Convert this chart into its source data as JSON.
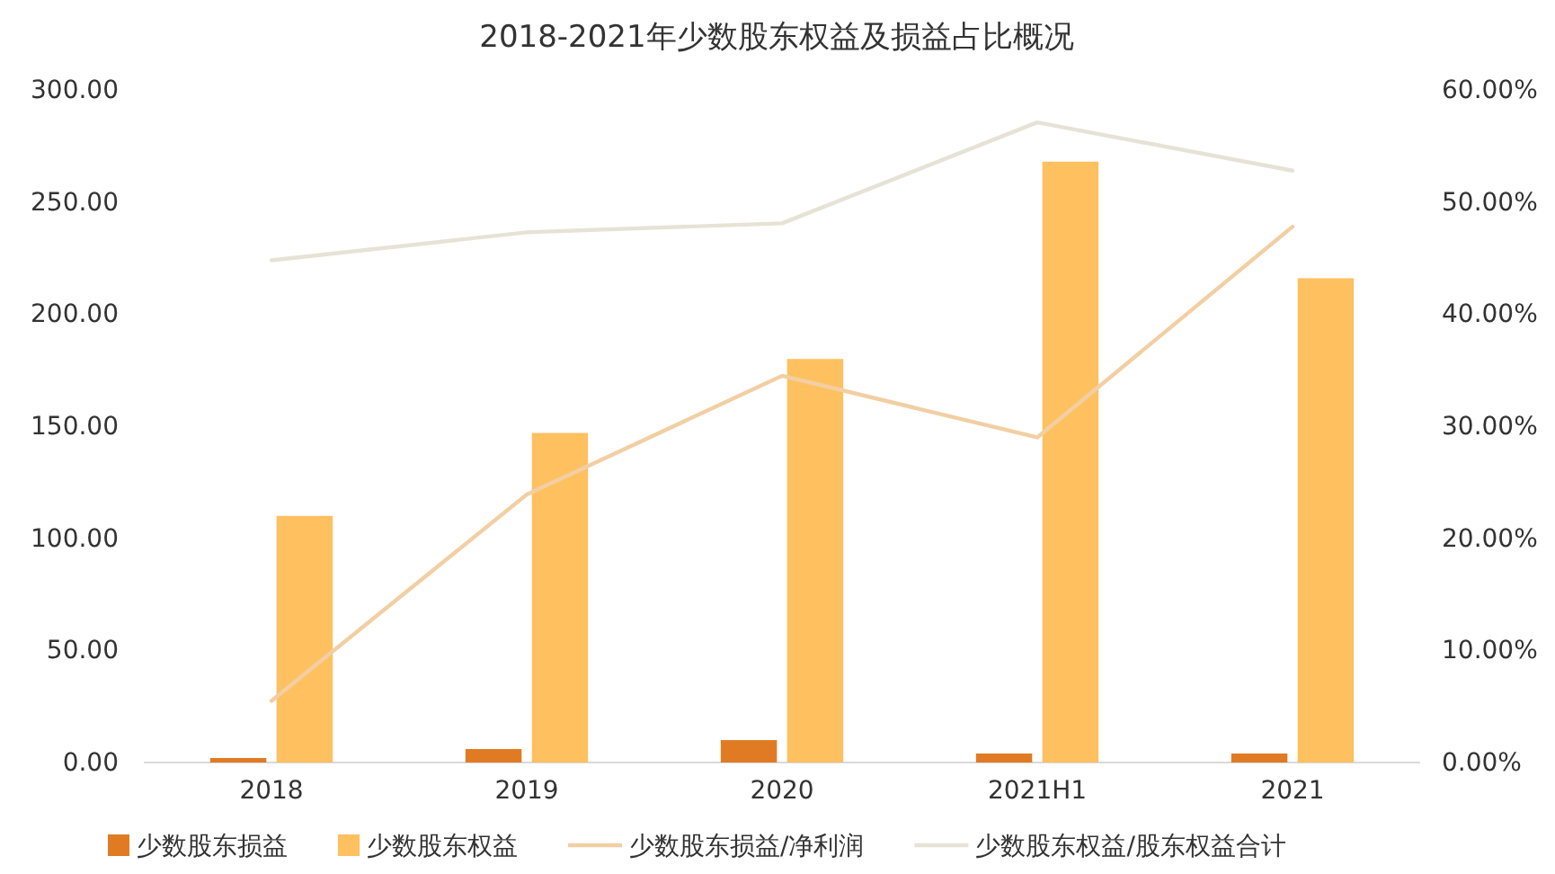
{
  "chart_data": {
    "type": "bar",
    "title": "2018-2021年少数股东权益及损益占比概况",
    "categories": [
      "2018",
      "2019",
      "2020",
      "2021H1",
      "2021"
    ],
    "series": [
      {
        "name": "少数股东损益",
        "color": "#e07b24",
        "values": [
          2,
          6,
          10,
          4,
          4
        ]
      },
      {
        "name": "少数股东权益",
        "color": "#ffc060",
        "values": [
          110,
          147,
          180,
          268,
          216
        ]
      },
      {
        "name": "少数股东损益/净利润",
        "type": "line",
        "axis": "y2",
        "color": "#f2cfa3",
        "values": [
          5.5,
          23.9,
          34.5,
          29.0,
          47.8
        ]
      },
      {
        "name": "少数股东权益/股东权益合计",
        "type": "line",
        "axis": "y2",
        "color": "#e6e3d6",
        "values": [
          44.8,
          47.3,
          48.1,
          57.1,
          52.8
        ]
      }
    ],
    "ylim": [
      0,
      300
    ],
    "yticks": [
      {
        "value": 0,
        "label": "0.00"
      },
      {
        "value": 50,
        "label": "50.00"
      },
      {
        "value": 100,
        "label": "100.00"
      },
      {
        "value": 150,
        "label": "150.00"
      },
      {
        "value": 200,
        "label": "200.00"
      },
      {
        "value": 250,
        "label": "250.00"
      },
      {
        "value": 300,
        "label": "300.00"
      }
    ],
    "y2lim": [
      0,
      60
    ],
    "y2ticks": [
      {
        "value": 0,
        "label": "0.00%"
      },
      {
        "value": 10,
        "label": "10.00%"
      },
      {
        "value": 20,
        "label": "20.00%"
      },
      {
        "value": 30,
        "label": "30.00%"
      },
      {
        "value": 40,
        "label": "40.00%"
      },
      {
        "value": 50,
        "label": "50.00%"
      },
      {
        "value": 60,
        "label": "60.00%"
      }
    ],
    "legend": "bottom",
    "grid": false,
    "marker": "none",
    "line_style": "solid"
  }
}
